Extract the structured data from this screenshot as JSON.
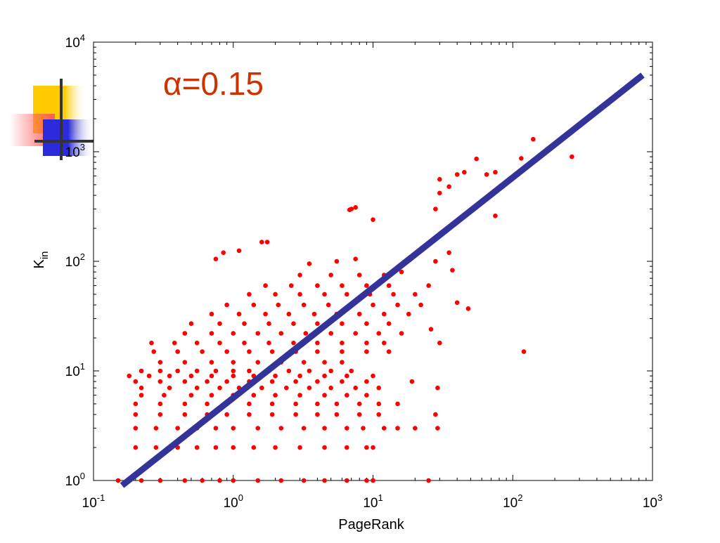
{
  "annotation": "α=0.15",
  "colors": {
    "points": "#ff0000",
    "fit_line": "#333399",
    "annotation": "#cc3300",
    "axis": "#000000",
    "deco_yellow": "#ffcc00",
    "deco_red": "#ff5a5a",
    "deco_blue": "#2b2bdd",
    "deco_cross": "#333333"
  },
  "chart_data": {
    "type": "scatter",
    "title": "",
    "xlabel": "PageRank",
    "ylabel": "K",
    "ylabel_subscript": "in",
    "x_scale": "log",
    "y_scale": "log",
    "xlim": [
      0.1,
      1000
    ],
    "ylim": [
      1,
      10000
    ],
    "x_ticks": [
      {
        "base": "10",
        "exp": "-1"
      },
      {
        "base": "10",
        "exp": "0"
      },
      {
        "base": "10",
        "exp": "1"
      },
      {
        "base": "10",
        "exp": "2"
      },
      {
        "base": "10",
        "exp": "3"
      }
    ],
    "y_ticks": [
      {
        "base": "10",
        "exp": "0"
      },
      {
        "base": "10",
        "exp": "1"
      },
      {
        "base": "10",
        "exp": "2"
      },
      {
        "base": "10",
        "exp": "3"
      },
      {
        "base": "10",
        "exp": "4"
      }
    ],
    "grid": false,
    "fit_line": {
      "x": [
        0.16,
        850
      ],
      "y": [
        0.9,
        5000
      ]
    },
    "series": [
      {
        "values": [
          [
            0.15,
            1
          ],
          [
            0.22,
            1
          ],
          [
            0.3,
            1
          ],
          [
            0.45,
            1
          ],
          [
            0.6,
            1
          ],
          [
            0.8,
            1
          ],
          [
            1.0,
            1
          ],
          [
            1.5,
            1
          ],
          [
            2.2,
            1
          ],
          [
            3.2,
            1
          ],
          [
            4.5,
            1
          ],
          [
            6.5,
            1
          ],
          [
            9,
            1
          ],
          [
            10,
            1
          ],
          [
            25,
            1
          ],
          [
            0.2,
            2
          ],
          [
            0.28,
            2
          ],
          [
            0.4,
            2
          ],
          [
            0.55,
            2
          ],
          [
            0.75,
            2
          ],
          [
            1.0,
            2
          ],
          [
            1.4,
            2
          ],
          [
            2,
            2
          ],
          [
            3,
            2
          ],
          [
            4.5,
            2
          ],
          [
            6.5,
            2
          ],
          [
            9,
            2
          ],
          [
            10,
            2
          ],
          [
            0.2,
            3
          ],
          [
            0.28,
            3
          ],
          [
            0.4,
            3
          ],
          [
            0.55,
            3
          ],
          [
            0.75,
            3
          ],
          [
            1.0,
            3
          ],
          [
            1.5,
            3
          ],
          [
            2.2,
            3
          ],
          [
            3.2,
            3
          ],
          [
            4.5,
            3
          ],
          [
            6.5,
            3
          ],
          [
            8.5,
            3
          ],
          [
            12,
            3
          ],
          [
            15,
            3
          ],
          [
            20,
            3
          ],
          [
            29,
            3
          ],
          [
            0.2,
            4
          ],
          [
            0.3,
            4
          ],
          [
            0.45,
            4
          ],
          [
            0.65,
            4
          ],
          [
            0.9,
            4
          ],
          [
            1.3,
            4
          ],
          [
            1.9,
            4
          ],
          [
            2.8,
            4
          ],
          [
            4,
            4
          ],
          [
            5.5,
            4
          ],
          [
            8,
            4
          ],
          [
            11,
            4
          ],
          [
            28,
            4
          ],
          [
            0.2,
            5
          ],
          [
            0.3,
            5
          ],
          [
            0.45,
            5
          ],
          [
            0.65,
            5
          ],
          [
            0.9,
            5
          ],
          [
            1.3,
            5
          ],
          [
            1.9,
            5
          ],
          [
            2.8,
            5
          ],
          [
            4,
            5
          ],
          [
            5.5,
            5
          ],
          [
            8,
            5
          ],
          [
            11,
            5
          ],
          [
            15,
            5
          ],
          [
            0.22,
            6
          ],
          [
            0.32,
            6
          ],
          [
            0.5,
            6
          ],
          [
            0.7,
            6
          ],
          [
            1.0,
            6
          ],
          [
            1.4,
            6
          ],
          [
            2,
            6
          ],
          [
            3,
            6
          ],
          [
            4.5,
            6
          ],
          [
            6.5,
            6
          ],
          [
            9,
            6
          ],
          [
            0.22,
            7
          ],
          [
            0.35,
            7
          ],
          [
            0.55,
            7
          ],
          [
            0.8,
            7
          ],
          [
            1.1,
            7
          ],
          [
            1.6,
            7
          ],
          [
            2.4,
            7
          ],
          [
            3.5,
            7
          ],
          [
            5,
            7
          ],
          [
            7.5,
            7
          ],
          [
            11,
            7
          ],
          [
            29,
            7
          ],
          [
            0.2,
            8
          ],
          [
            0.3,
            8
          ],
          [
            0.45,
            8
          ],
          [
            0.65,
            8
          ],
          [
            0.9,
            8
          ],
          [
            1.3,
            8
          ],
          [
            1.9,
            8
          ],
          [
            2.8,
            8
          ],
          [
            4,
            8
          ],
          [
            6,
            8
          ],
          [
            9,
            8
          ],
          [
            19,
            8
          ],
          [
            0.18,
            9
          ],
          [
            0.25,
            9
          ],
          [
            0.35,
            9
          ],
          [
            0.5,
            9
          ],
          [
            0.7,
            9
          ],
          [
            1.0,
            9
          ],
          [
            1.4,
            9
          ],
          [
            2,
            9
          ],
          [
            3,
            9
          ],
          [
            4.5,
            9
          ],
          [
            6.5,
            9
          ],
          [
            10,
            9
          ],
          [
            0.22,
            10
          ],
          [
            0.3,
            10
          ],
          [
            0.4,
            10
          ],
          [
            0.55,
            10
          ],
          [
            0.75,
            10
          ],
          [
            1.0,
            10
          ],
          [
            1.3,
            10
          ],
          [
            1.8,
            10
          ],
          [
            2.5,
            10
          ],
          [
            3.5,
            10
          ],
          [
            5,
            10
          ],
          [
            7,
            10
          ],
          [
            0.3,
            12
          ],
          [
            0.45,
            12
          ],
          [
            0.7,
            12
          ],
          [
            1.0,
            12
          ],
          [
            1.5,
            12
          ],
          [
            2.2,
            12
          ],
          [
            3.2,
            12
          ],
          [
            4.5,
            12
          ],
          [
            6,
            12
          ],
          [
            0.27,
            15
          ],
          [
            0.4,
            15
          ],
          [
            0.6,
            15
          ],
          [
            0.9,
            15
          ],
          [
            1.3,
            15
          ],
          [
            1.9,
            15
          ],
          [
            2.8,
            15
          ],
          [
            4,
            15
          ],
          [
            6,
            15
          ],
          [
            9,
            15
          ],
          [
            13,
            15
          ],
          [
            120,
            15
          ],
          [
            0.26,
            18
          ],
          [
            0.38,
            18
          ],
          [
            0.55,
            18
          ],
          [
            0.8,
            18
          ],
          [
            1.2,
            18
          ],
          [
            1.8,
            18
          ],
          [
            2.7,
            18
          ],
          [
            4,
            18
          ],
          [
            6,
            18
          ],
          [
            9,
            18
          ],
          [
            12,
            18
          ],
          [
            30,
            18
          ],
          [
            0.45,
            22
          ],
          [
            0.7,
            22
          ],
          [
            1.0,
            22
          ],
          [
            1.5,
            22
          ],
          [
            2.2,
            22
          ],
          [
            3.3,
            22
          ],
          [
            5,
            22
          ],
          [
            7.5,
            22
          ],
          [
            11,
            22
          ],
          [
            16,
            22
          ],
          [
            0.5,
            27
          ],
          [
            0.8,
            27
          ],
          [
            1.2,
            27
          ],
          [
            1.8,
            27
          ],
          [
            2.7,
            27
          ],
          [
            4,
            27
          ],
          [
            6,
            27
          ],
          [
            9,
            27
          ],
          [
            13,
            27
          ],
          [
            26,
            24
          ],
          [
            0.7,
            33
          ],
          [
            1.1,
            33
          ],
          [
            1.7,
            33
          ],
          [
            2.5,
            33
          ],
          [
            3.8,
            33
          ],
          [
            5.5,
            33
          ],
          [
            8,
            33
          ],
          [
            12,
            33
          ],
          [
            18,
            33
          ],
          [
            48,
            37
          ],
          [
            0.9,
            40
          ],
          [
            1.4,
            40
          ],
          [
            2.1,
            40
          ],
          [
            3.2,
            40
          ],
          [
            4.8,
            40
          ],
          [
            7,
            40
          ],
          [
            10,
            40
          ],
          [
            15,
            40
          ],
          [
            22,
            40
          ],
          [
            40,
            42
          ],
          [
            1.3,
            50
          ],
          [
            2,
            50
          ],
          [
            3,
            50
          ],
          [
            4.5,
            50
          ],
          [
            6.5,
            50
          ],
          [
            9.5,
            50
          ],
          [
            14,
            50
          ],
          [
            20,
            50
          ],
          [
            1.7,
            60
          ],
          [
            2.6,
            60
          ],
          [
            4,
            60
          ],
          [
            6,
            60
          ],
          [
            9,
            60
          ],
          [
            13,
            60
          ],
          [
            25,
            60
          ],
          [
            3,
            75
          ],
          [
            5,
            75
          ],
          [
            8,
            75
          ],
          [
            12,
            75
          ],
          [
            16,
            80
          ],
          [
            37,
            83
          ],
          [
            28,
            100
          ],
          [
            3.5,
            95
          ],
          [
            5.5,
            100
          ],
          [
            7.5,
            105
          ],
          [
            0.75,
            105
          ],
          [
            1.1,
            125
          ],
          [
            0.85,
            120
          ],
          [
            1.6,
            150
          ],
          [
            1.75,
            150
          ],
          [
            35,
            120
          ],
          [
            7,
            300
          ],
          [
            7.5,
            310
          ],
          [
            6.8,
            295
          ],
          [
            10,
            240
          ],
          [
            28,
            300
          ],
          [
            30,
            420
          ],
          [
            30,
            560
          ],
          [
            35,
            480
          ],
          [
            40,
            620
          ],
          [
            45,
            650
          ],
          [
            55,
            860
          ],
          [
            65,
            620
          ],
          [
            75,
            650
          ],
          [
            75,
            260
          ],
          [
            115,
            870
          ],
          [
            140,
            1300
          ],
          [
            265,
            900
          ]
        ]
      }
    ]
  }
}
